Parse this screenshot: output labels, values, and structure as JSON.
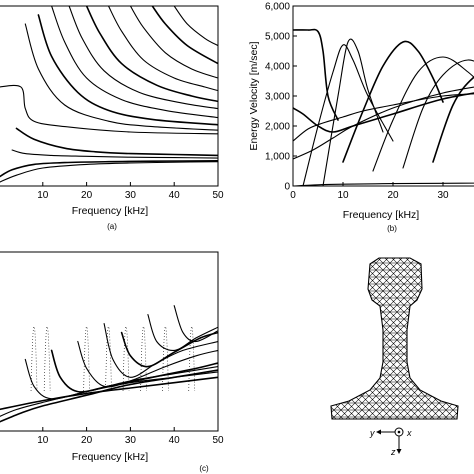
{
  "chart_data": [
    {
      "id": "a",
      "panel_label": "(a)",
      "type": "line",
      "title": "",
      "xlabel": "Frequency [kHz]",
      "ylabel": "",
      "xlim": [
        0,
        50
      ],
      "x_ticks": [
        "10",
        "20",
        "30",
        "40",
        "50"
      ],
      "grid": false,
      "legend": "none",
      "series_note": "dense dispersion branches; curves flatten toward the high-frequency limit",
      "series": [
        {
          "x": [
            0,
            3,
            8,
            15,
            25,
            35,
            50
          ],
          "y": [
            0.05,
            0.09,
            0.12,
            0.13,
            0.135,
            0.138,
            0.14
          ]
        },
        {
          "x": [
            0,
            4,
            10,
            20,
            30,
            40,
            50
          ],
          "y": [
            0.02,
            0.06,
            0.1,
            0.12,
            0.128,
            0.132,
            0.135
          ]
        },
        {
          "x": [
            3,
            6,
            12,
            20,
            30,
            40,
            50
          ],
          "y": [
            0.2,
            0.18,
            0.17,
            0.165,
            0.16,
            0.158,
            0.155
          ]
        },
        {
          "x": [
            4,
            8,
            15,
            22,
            30,
            40,
            50
          ],
          "y": [
            0.32,
            0.26,
            0.21,
            0.19,
            0.18,
            0.175,
            0.17
          ]
        },
        {
          "x": [
            0,
            5,
            6,
            8,
            15,
            30,
            50
          ],
          "y": [
            0.55,
            0.55,
            0.43,
            0.36,
            0.33,
            0.3,
            0.29
          ]
        },
        {
          "x": [
            6,
            9,
            15,
            25,
            35,
            50
          ],
          "y": [
            0.9,
            0.65,
            0.45,
            0.36,
            0.33,
            0.31
          ]
        },
        {
          "x": [
            9,
            12,
            18,
            25,
            35,
            50
          ],
          "y": [
            0.95,
            0.72,
            0.52,
            0.42,
            0.37,
            0.34
          ]
        },
        {
          "x": [
            12,
            15,
            20,
            28,
            38,
            50
          ],
          "y": [
            1.0,
            0.8,
            0.6,
            0.48,
            0.42,
            0.38
          ]
        },
        {
          "x": [
            16,
            19,
            24,
            32,
            42,
            50
          ],
          "y": [
            1.0,
            0.82,
            0.64,
            0.52,
            0.46,
            0.43
          ]
        },
        {
          "x": [
            20,
            23,
            28,
            36,
            44,
            50
          ],
          "y": [
            1.0,
            0.85,
            0.68,
            0.56,
            0.5,
            0.47
          ]
        },
        {
          "x": [
            25,
            28,
            33,
            40,
            47,
            50
          ],
          "y": [
            1.0,
            0.86,
            0.7,
            0.6,
            0.55,
            0.53
          ]
        },
        {
          "x": [
            30,
            33,
            38,
            44,
            50
          ],
          "y": [
            1.0,
            0.88,
            0.74,
            0.65,
            0.6
          ]
        },
        {
          "x": [
            35,
            38,
            43,
            50
          ],
          "y": [
            1.0,
            0.9,
            0.78,
            0.68
          ]
        },
        {
          "x": [
            40,
            43,
            47,
            50
          ],
          "y": [
            1.0,
            0.9,
            0.82,
            0.78
          ]
        }
      ]
    },
    {
      "id": "b",
      "panel_label": "(b)",
      "type": "line",
      "title": "",
      "xlabel": "Frequency [kHz]",
      "ylabel": "Energy Velocity [m/sec]",
      "xlim": [
        0,
        40
      ],
      "ylim": [
        0,
        6000
      ],
      "x_ticks": [
        "0",
        "10",
        "20",
        "30"
      ],
      "y_ticks": [
        "0",
        "1,000",
        "2,000",
        "3,000",
        "4,000",
        "5,000",
        "6,000"
      ],
      "grid": false,
      "legend": "none",
      "series": [
        {
          "x": [
            0,
            3,
            5,
            6,
            7,
            9
          ],
          "y": [
            5200,
            5200,
            5150,
            4500,
            3000,
            2200
          ]
        },
        {
          "x": [
            0,
            5,
            10,
            20,
            30,
            40
          ],
          "y": [
            0,
            40,
            60,
            80,
            90,
            100
          ]
        },
        {
          "x": [
            0,
            3,
            6,
            10,
            14,
            20,
            30,
            40
          ],
          "y": [
            1500,
            1900,
            2100,
            2300,
            2500,
            2700,
            3000,
            3100
          ]
        },
        {
          "x": [
            0,
            2,
            5,
            8,
            12,
            20,
            30,
            40
          ],
          "y": [
            2600,
            2400,
            2000,
            1800,
            2000,
            2400,
            2900,
            3200
          ]
        },
        {
          "x": [
            2,
            5,
            8,
            10,
            12,
            15,
            20
          ],
          "y": [
            0,
            2000,
            3800,
            4700,
            4200,
            3000,
            1500
          ]
        },
        {
          "x": [
            6,
            9,
            11,
            13,
            15,
            18
          ],
          "y": [
            0,
            3000,
            4800,
            4500,
            3200,
            1800
          ]
        },
        {
          "x": [
            10,
            14,
            18,
            22,
            25,
            28,
            30
          ],
          "y": [
            800,
            2500,
            4000,
            4800,
            4500,
            3600,
            2800
          ]
        },
        {
          "x": [
            16,
            20,
            25,
            30,
            35,
            40
          ],
          "y": [
            500,
            2200,
            3800,
            4300,
            3800,
            3000
          ]
        },
        {
          "x": [
            22,
            26,
            30,
            35,
            40
          ],
          "y": [
            600,
            2600,
            3700,
            4200,
            3800
          ]
        },
        {
          "x": [
            28,
            32,
            36,
            40
          ],
          "y": [
            800,
            2700,
            3600,
            3900
          ]
        },
        {
          "x": [
            0,
            4,
            8,
            12,
            20,
            30,
            40
          ],
          "y": [
            900,
            1200,
            1600,
            2000,
            2600,
            3100,
            3400
          ]
        }
      ]
    },
    {
      "id": "c",
      "panel_label": "(c)",
      "type": "line",
      "title": "",
      "xlabel": "Frequency [kHz]",
      "ylabel": "",
      "xlim": [
        0,
        50
      ],
      "x_ticks": [
        "10",
        "20",
        "30",
        "40",
        "50"
      ],
      "grid": false,
      "legend": "none",
      "series_note": "curves bunch together at low values; sharp peaks near cut-off frequencies",
      "series": [
        {
          "x": [
            0,
            5,
            10,
            20,
            30,
            40,
            50
          ],
          "y": [
            0.05,
            0.1,
            0.14,
            0.2,
            0.26,
            0.3,
            0.34
          ]
        },
        {
          "x": [
            0,
            4,
            10,
            20,
            30,
            40,
            50
          ],
          "y": [
            0.08,
            0.12,
            0.16,
            0.22,
            0.28,
            0.32,
            0.36
          ]
        },
        {
          "x": [
            6,
            8,
            12,
            20,
            30,
            40,
            50
          ],
          "y": [
            0.4,
            0.25,
            0.18,
            0.22,
            0.27,
            0.3,
            0.33
          ]
        },
        {
          "x": [
            12,
            14,
            18,
            25,
            35,
            45,
            50
          ],
          "y": [
            0.45,
            0.3,
            0.22,
            0.25,
            0.3,
            0.35,
            0.38
          ]
        },
        {
          "x": [
            18,
            20,
            24,
            30,
            38,
            45,
            50
          ],
          "y": [
            0.5,
            0.35,
            0.25,
            0.28,
            0.36,
            0.42,
            0.45
          ]
        },
        {
          "x": [
            24,
            26,
            30,
            36,
            42,
            50
          ],
          "y": [
            0.6,
            0.4,
            0.3,
            0.38,
            0.45,
            0.5
          ]
        },
        {
          "x": [
            28,
            30,
            34,
            40,
            46,
            50
          ],
          "y": [
            0.55,
            0.42,
            0.36,
            0.44,
            0.52,
            0.55
          ]
        },
        {
          "x": [
            34,
            36,
            40,
            45,
            50
          ],
          "y": [
            0.65,
            0.5,
            0.45,
            0.52,
            0.58
          ]
        },
        {
          "x": [
            40,
            42,
            45,
            50
          ],
          "y": [
            0.7,
            0.55,
            0.5,
            0.56
          ]
        },
        {
          "x": [
            0,
            10,
            20,
            30,
            40,
            50
          ],
          "y": [
            0.12,
            0.17,
            0.21,
            0.24,
            0.27,
            0.3
          ]
        }
      ],
      "spikes": [
        8,
        11,
        20,
        25,
        29,
        33,
        38,
        44
      ]
    }
  ],
  "rail_mesh": {
    "type": "diagram",
    "axis_labels": [
      "y",
      "x",
      "z"
    ]
  }
}
